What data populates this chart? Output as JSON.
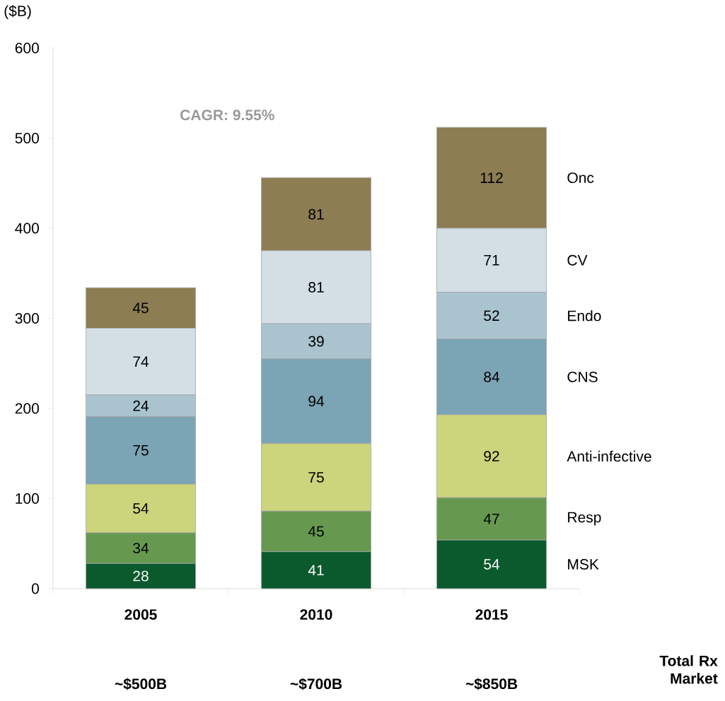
{
  "chart_data": {
    "type": "bar",
    "stacked": true,
    "ylabel": "($B)",
    "categories": [
      "2005",
      "2010",
      "2015"
    ],
    "ylim": [
      0,
      600
    ],
    "yticks": [
      0,
      100,
      200,
      300,
      400,
      500,
      600
    ],
    "grid": false,
    "legend": false,
    "data_labels": true,
    "series": [
      {
        "name": "MSK",
        "color": "#0b5a2e",
        "values": [
          28,
          41,
          54
        ]
      },
      {
        "name": "Resp",
        "color": "#66994f",
        "values": [
          34,
          45,
          47
        ]
      },
      {
        "name": "Anti-infective",
        "color": "#ccd47c",
        "values": [
          54,
          75,
          92
        ]
      },
      {
        "name": "CNS",
        "color": "#7ba4b5",
        "values": [
          75,
          94,
          84
        ]
      },
      {
        "name": "Endo",
        "color": "#a9c4cf",
        "values": [
          24,
          39,
          52
        ]
      },
      {
        "name": "CV",
        "color": "#d3dfe5",
        "values": [
          74,
          81,
          71
        ]
      },
      {
        "name": "Onc",
        "color": "#8c7d52",
        "values": [
          45,
          81,
          112
        ]
      }
    ],
    "annotations": [
      "CAGR: 9.55%",
      "~$500B",
      "~$700B",
      "~$850B",
      "Total Rx Market"
    ]
  }
}
